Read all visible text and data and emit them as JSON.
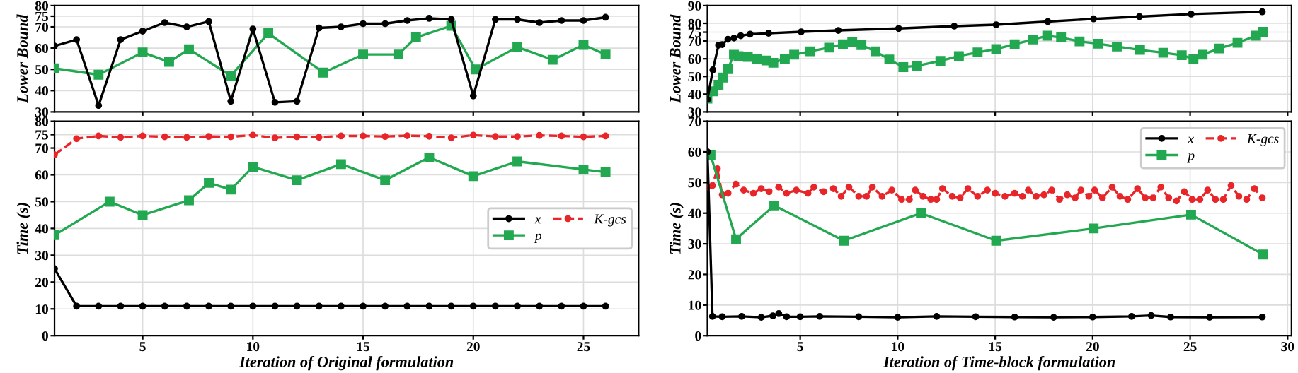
{
  "chart_data": [
    {
      "type": "line",
      "ylabel": "Lower Bound",
      "xlim": [
        1,
        27.5
      ],
      "ylim": [
        30,
        80
      ],
      "xticks": [
        5,
        10,
        15,
        20,
        25
      ],
      "yticks": [
        30,
        40,
        50,
        60,
        70,
        75,
        80
      ],
      "tick_labels": "y",
      "grid": true,
      "legend": false,
      "series": [
        {
          "color": "#000000",
          "marker": "circle",
          "line_style": "solid",
          "x": [
            1,
            2,
            3,
            4,
            5,
            6,
            7,
            8,
            9,
            10,
            11,
            12,
            13,
            14,
            15,
            16,
            17,
            18,
            19,
            20,
            21,
            22,
            23,
            24,
            25,
            26
          ],
          "values": [
            61,
            64,
            33,
            64,
            68,
            72,
            70,
            72.5,
            35,
            69,
            34.5,
            35,
            69.5,
            70,
            71.5,
            71.5,
            73,
            74,
            73.5,
            37.5,
            73.5,
            73.5,
            72,
            73,
            73,
            74.5
          ]
        },
        {
          "color": "#22a850",
          "marker": "square",
          "line_style": "solid",
          "x": [
            1,
            3,
            5,
            6.2,
            7.1,
            9,
            10.7,
            13.2,
            15,
            16.6,
            17.4,
            19,
            20.1,
            22,
            23.6,
            25,
            26
          ],
          "values": [
            50.5,
            47.5,
            58,
            53.5,
            59.5,
            47,
            67,
            48.5,
            57,
            57,
            65,
            70.5,
            50,
            60.5,
            54.5,
            61.5,
            57
          ]
        }
      ]
    },
    {
      "type": "line",
      "ylabel": "Lower Bound",
      "xlim": [
        0.24,
        30.2
      ],
      "ylim": [
        30,
        90
      ],
      "xticks": [
        5,
        10,
        15,
        20,
        25,
        30
      ],
      "yticks": [
        30,
        40,
        50,
        60,
        70,
        75,
        80,
        90
      ],
      "tick_labels": "y",
      "grid": true,
      "legend": false,
      "series": [
        {
          "color": "#000000",
          "marker": "circle",
          "line_style": "solid",
          "x": [
            0.24,
            0.52,
            0.81,
            1.0,
            1.29,
            1.6,
            1.95,
            2.43,
            3.38,
            5.05,
            6.95,
            10.05,
            12.9,
            15.05,
            17.7,
            20.05,
            22.4,
            25.05,
            28.7
          ],
          "values": [
            37,
            53.7,
            67.7,
            68,
            71,
            71.7,
            73,
            73.9,
            74.4,
            75.2,
            76,
            77.1,
            78.4,
            79.2,
            81,
            82.5,
            83.8,
            85.2,
            86.5
          ]
        },
        {
          "color": "#22a850",
          "marker": "square",
          "line_style": "solid",
          "x": [
            0.24,
            0.52,
            0.81,
            1.05,
            1.29,
            1.6,
            1.83,
            2.31,
            2.79,
            3.26,
            3.62,
            4.21,
            4.69,
            5.52,
            6.48,
            7.19,
            7.67,
            8.14,
            8.86,
            9.57,
            10.29,
            11,
            12.19,
            13.14,
            14.1,
            15.05,
            16,
            16.95,
            17.67,
            18.38,
            19.33,
            20.29,
            21.24,
            22.43,
            23.62,
            24.57,
            25.17,
            25.64,
            26.48,
            27.43,
            28.38,
            28.74
          ],
          "values": [
            37.5,
            41.6,
            45.3,
            49.4,
            54.2,
            62.3,
            61.5,
            61,
            60,
            59,
            57.7,
            60,
            62.3,
            64.2,
            66.3,
            68.2,
            69.6,
            67.7,
            64.2,
            59.6,
            55.3,
            56,
            58.8,
            61.5,
            63.6,
            65.5,
            68.2,
            70.9,
            73,
            72,
            69.8,
            68.5,
            66.9,
            65,
            63.4,
            62,
            60,
            62.3,
            65.8,
            69,
            73,
            75.2
          ]
        }
      ]
    },
    {
      "type": "line",
      "ylabel": "Time (s)",
      "xlabel": "Iteration of Original formulation",
      "xlim": [
        1,
        27.5
      ],
      "ylim": [
        0,
        80
      ],
      "xticks": [
        5,
        10,
        15,
        20,
        25
      ],
      "yticks": [
        0,
        10,
        20,
        30,
        40,
        50,
        60,
        70,
        75,
        80
      ],
      "grid": true,
      "legend": "right",
      "series": [
        {
          "name": "x",
          "color": "#000000",
          "marker": "circle",
          "line_style": "solid",
          "x": [
            1,
            2,
            3,
            4,
            5,
            6,
            7,
            8,
            9,
            10,
            11,
            12,
            13,
            14,
            15,
            16,
            17,
            18,
            19,
            20,
            21,
            22,
            23,
            24,
            25,
            26
          ],
          "values": [
            25,
            11,
            11,
            11,
            11,
            11,
            11,
            11,
            11,
            11,
            11,
            11,
            11,
            11,
            11,
            11,
            11,
            11,
            11,
            11,
            11,
            11,
            11,
            11,
            11,
            11
          ]
        },
        {
          "name": "p",
          "color": "#22a850",
          "marker": "square",
          "line_style": "solid",
          "x": [
            1,
            3.5,
            5,
            7.1,
            8,
            9,
            10,
            12,
            14,
            16,
            18,
            20,
            22,
            25,
            26
          ],
          "values": [
            37.5,
            50,
            45,
            50.5,
            57,
            54.5,
            63,
            58,
            64,
            58,
            66.5,
            59.5,
            65,
            62,
            61
          ]
        },
        {
          "name": "K-gcs",
          "color": "#e8262a",
          "marker": "circle",
          "line_style": "dashed",
          "x": [
            1,
            2,
            3,
            4,
            5,
            6,
            7,
            8,
            9,
            10,
            11,
            12,
            13,
            14,
            15,
            16,
            17,
            18,
            19,
            20,
            21,
            22,
            23,
            24,
            25,
            26
          ],
          "values": [
            67.5,
            73.5,
            74.5,
            74,
            74.5,
            74.2,
            74,
            74.3,
            74.2,
            74.8,
            73.8,
            74.2,
            74,
            74.5,
            74.5,
            74.3,
            74.6,
            74.4,
            73.8,
            74.8,
            74.3,
            74.3,
            74.7,
            74.5,
            74.2,
            74.5
          ]
        }
      ]
    },
    {
      "type": "line",
      "ylabel": "Time (s)",
      "xlabel": "Iteration of Time-block formulation",
      "xlim": [
        0.24,
        30.2
      ],
      "ylim": [
        0,
        70
      ],
      "xticks": [
        5,
        10,
        15,
        20,
        25,
        30
      ],
      "yticks": [
        0,
        10,
        20,
        30,
        40,
        50,
        60,
        70
      ],
      "grid": true,
      "legend": "top right",
      "series": [
        {
          "name": "x",
          "color": "#000000",
          "marker": "circle",
          "line_style": "solid",
          "x": [
            0.24,
            0.5,
            1,
            2,
            3,
            3.6,
            3.9,
            4.3,
            5,
            6,
            8,
            10,
            12,
            14,
            16,
            18,
            20,
            22,
            23,
            24,
            26,
            28.7
          ],
          "values": [
            60,
            6.3,
            6.2,
            6.3,
            6,
            6.5,
            7.2,
            6.2,
            6.2,
            6.3,
            6.2,
            6,
            6.3,
            6.2,
            6.1,
            6,
            6.1,
            6.3,
            6.6,
            6.1,
            6,
            6.1
          ]
        },
        {
          "name": "p",
          "color": "#22a850",
          "marker": "square",
          "line_style": "solid",
          "x": [
            0.4,
            1.71,
            3.67,
            7.24,
            11.19,
            15.05,
            20.05,
            25.05,
            28.74
          ],
          "values": [
            59,
            31.5,
            42.5,
            31,
            40,
            31,
            35,
            39.5,
            26.5
          ]
        },
        {
          "name": "K-gcs",
          "color": "#e8262a",
          "marker": "circle",
          "line_style": "dashed",
          "x": [
            0.24,
            0.5,
            0.75,
            1.0,
            1.3,
            1.7,
            2.1,
            2.6,
            3.0,
            3.4,
            3.9,
            4.3,
            4.8,
            5.4,
            5.7,
            6.2,
            6.7,
            7.1,
            7.5,
            8.0,
            8.4,
            8.7,
            9.2,
            9.7,
            10.2,
            10.6,
            10.9,
            11.3,
            11.7,
            12.0,
            12.3,
            12.8,
            13.2,
            13.6,
            14.1,
            14.6,
            15.0,
            15.5,
            16.0,
            16.4,
            16.7,
            17.1,
            17.5,
            17.9,
            18.3,
            18.7,
            19.1,
            19.4,
            19.8,
            20.1,
            20.5,
            21.0,
            21.4,
            21.8,
            22.3,
            22.7,
            23.1,
            23.5,
            23.9,
            24.3,
            24.7,
            25.1,
            25.5,
            25.9,
            26.3,
            26.7,
            27.1,
            27.5,
            27.9,
            28.3,
            28.7
          ],
          "values": [
            48.5,
            49,
            54.5,
            46,
            46.5,
            49.5,
            47.5,
            46.5,
            48,
            47,
            48.5,
            46.5,
            47.5,
            46.5,
            48.5,
            47,
            48,
            45.5,
            48.5,
            45.5,
            45.5,
            48.5,
            45.5,
            47.5,
            44.5,
            44.5,
            47.5,
            45.5,
            44.5,
            44.5,
            48,
            45.5,
            45,
            48,
            45.5,
            47.5,
            46.5,
            45.5,
            46.5,
            45.5,
            47.5,
            45.5,
            46,
            47.5,
            44.5,
            46,
            45,
            47.5,
            45.5,
            47.5,
            45,
            48.5,
            45.5,
            44.5,
            48,
            45,
            45,
            48.5,
            45,
            44,
            47,
            44.5,
            44.5,
            47.5,
            44.5,
            44.5,
            49,
            45.5,
            44.5,
            48,
            45
          ]
        }
      ]
    }
  ]
}
